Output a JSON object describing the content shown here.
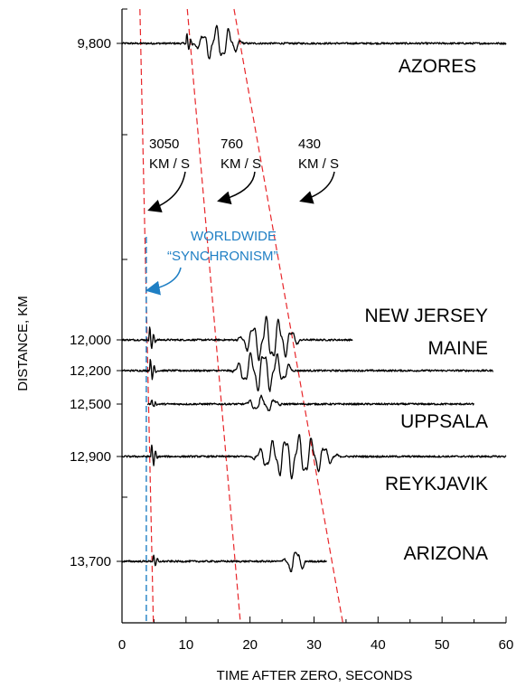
{
  "chart_data": {
    "type": "line",
    "xlabel": "TIME AFTER ZERO, SECONDS",
    "ylabel": "DISTANCE, KM",
    "xlim": [
      0,
      60
    ],
    "x_ticks": [
      0,
      10,
      20,
      30,
      40,
      50,
      60
    ],
    "y_ticks": [
      "9,800",
      "12,000",
      "12,200",
      "12,500",
      "12,900",
      "13,700"
    ],
    "grid": false,
    "stations": [
      {
        "name": "AZORES",
        "distance_km": 9800,
        "distance_label": "9,800",
        "trace_start": 0,
        "trace_end": 60,
        "onset": 10,
        "burst": [
          11,
          19
        ],
        "amp": 1.0
      },
      {
        "name": "NEW JERSEY",
        "distance_km": 12000,
        "distance_label": "12,000",
        "trace_start": 0,
        "trace_end": 36,
        "onset": 4.2,
        "burst": [
          18,
          28
        ],
        "amp": 1.3
      },
      {
        "name": "MAINE",
        "distance_km": 12200,
        "distance_label": "12,200",
        "trace_start": 0,
        "trace_end": 58,
        "onset": 4.3,
        "burst": [
          17,
          27
        ],
        "amp": 1.2
      },
      {
        "name": "UPPSALA",
        "distance_km": 12500,
        "distance_label": "12,500",
        "trace_start": 4,
        "trace_end": 55,
        "onset": 4.5,
        "burst": [
          19,
          25
        ],
        "amp": 0.45
      },
      {
        "name": "REYKJAVIK",
        "distance_km": 12900,
        "distance_label": "12,900",
        "trace_start": 0,
        "trace_end": 60,
        "onset": 4.5,
        "burst": [
          20,
          34
        ],
        "amp": 1.25
      },
      {
        "name": "ARIZONA",
        "distance_km": 13700,
        "distance_label": "13,700",
        "trace_start": 0,
        "trace_end": 32,
        "onset": 4.8,
        "burst": [
          25,
          29
        ],
        "amp": 0.7
      }
    ],
    "velocity_lines": [
      {
        "label_1": "3050",
        "label_2": "KM / S",
        "x_at_top": 2.8,
        "x_at_bottom": 4.9
      },
      {
        "label_1": "760",
        "label_2": "KM / S",
        "x_at_top": 10.2,
        "x_at_bottom": 18.5
      },
      {
        "label_1": "430",
        "label_2": "KM / S",
        "x_at_top": 17.5,
        "x_at_bottom": 34.5
      }
    ],
    "synchronism": {
      "line_1": "WORLDWIDE",
      "line_2": "“SYNCHRONISM”",
      "x": 3.8
    },
    "colors": {
      "trace": "#000000",
      "velocity": "#e8262a",
      "synchronism": "#1f7fc4"
    }
  }
}
